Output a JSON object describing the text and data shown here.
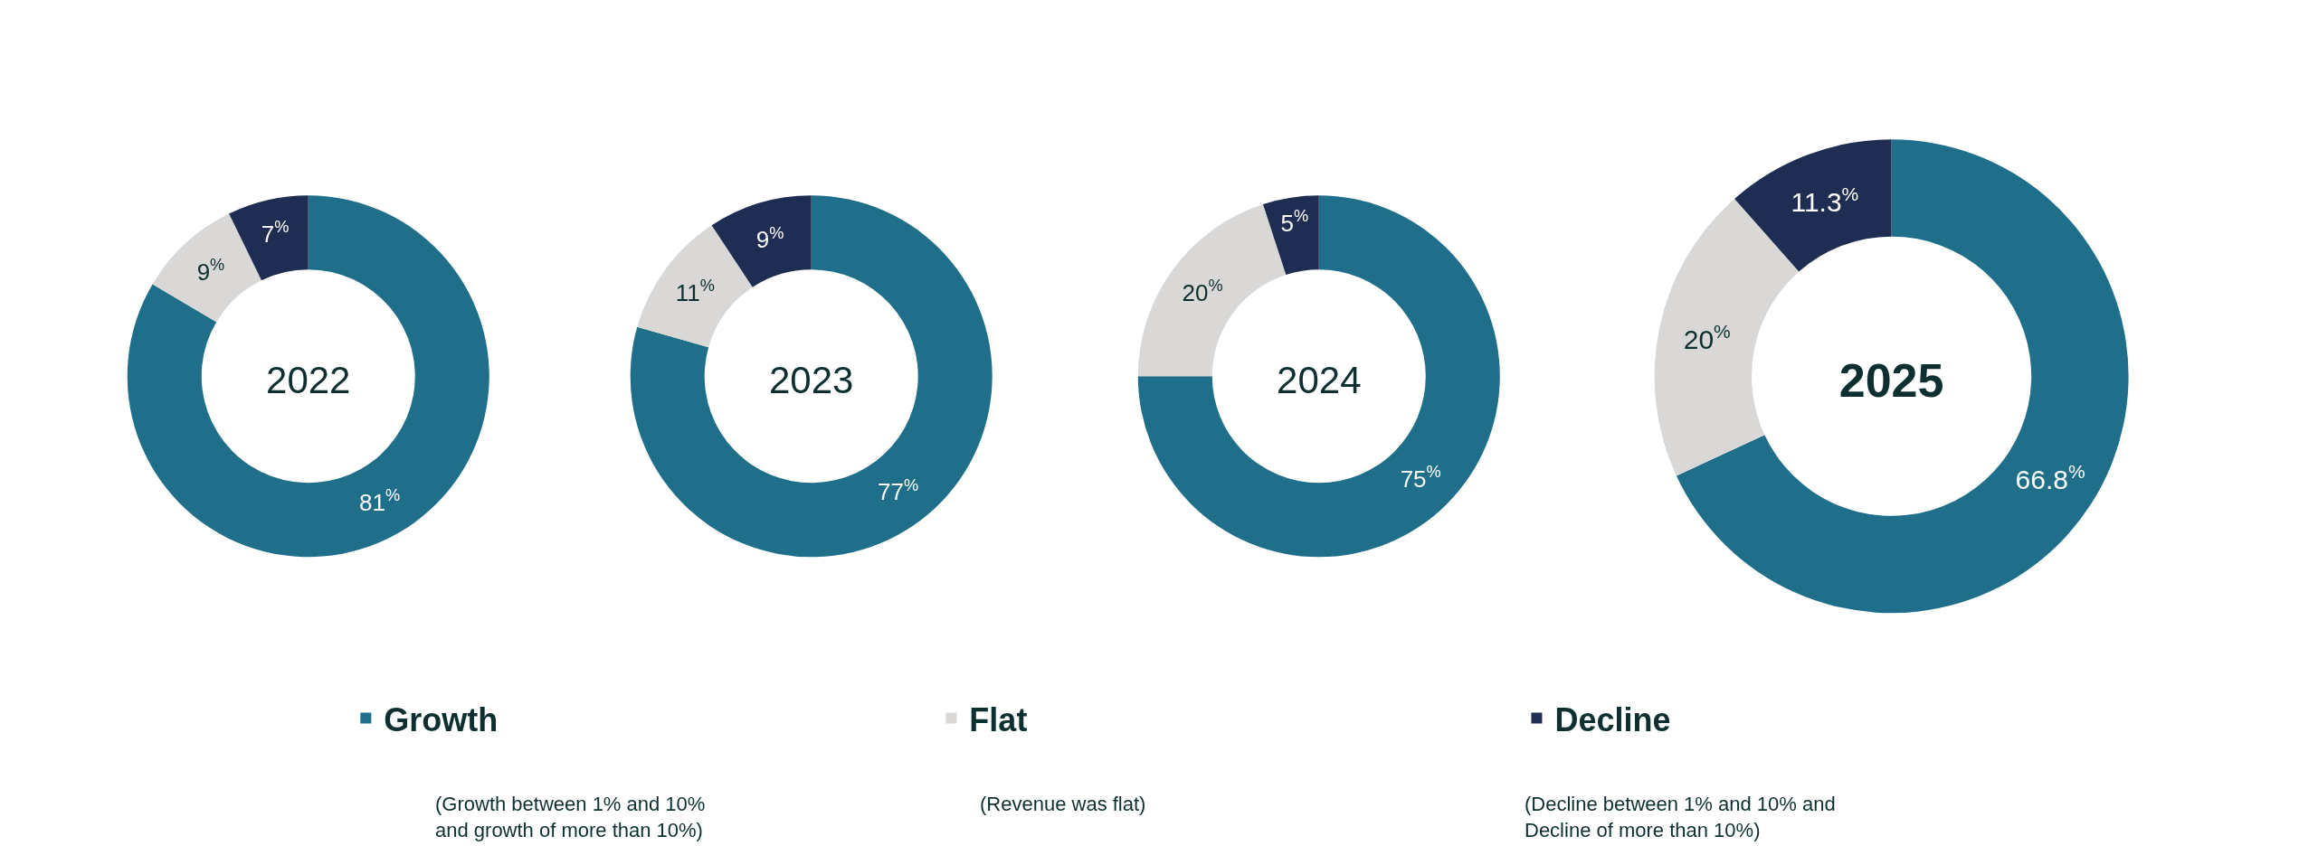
{
  "chart_data": {
    "type": "donut",
    "categories": [
      "Growth",
      "Flat",
      "Decline"
    ],
    "colors": [
      "#1f6f8b",
      "#d9d8d6",
      "#1f2d52"
    ],
    "legend": "bottom",
    "series": [
      {
        "name": "2022",
        "values": [
          81,
          9,
          7
        ],
        "value_labels": [
          "81$^{%}$",
          "9$^{%}$",
          "7$^{%}$"
        ]
      },
      {
        "name": "2023",
        "values": [
          77,
          11,
          9
        ],
        "value_labels": [
          "77$^{%}$",
          "11$^{%}$",
          "9$^{%}$"
        ]
      },
      {
        "name": "2024",
        "values": [
          75,
          20,
          5
        ],
        "value_labels": [
          "75$^{%}$",
          "20$^{%}$",
          "5$^{%}$"
        ]
      },
      {
        "name": "2025",
        "values": [
          66.8,
          20,
          11.3
        ],
        "value_labels": [
          "66.8$^{%}$",
          "20$^{%}$",
          "11.3$^{%}$"
        ]
      }
    ],
    "annotations": [
      "(Growth between 1% and 10%\nand growth of more than 10%)",
      "(Revenue was flat)",
      "(Decline between 1% and 10% and\nDecline of more than 10%)"
    ]
  }
}
